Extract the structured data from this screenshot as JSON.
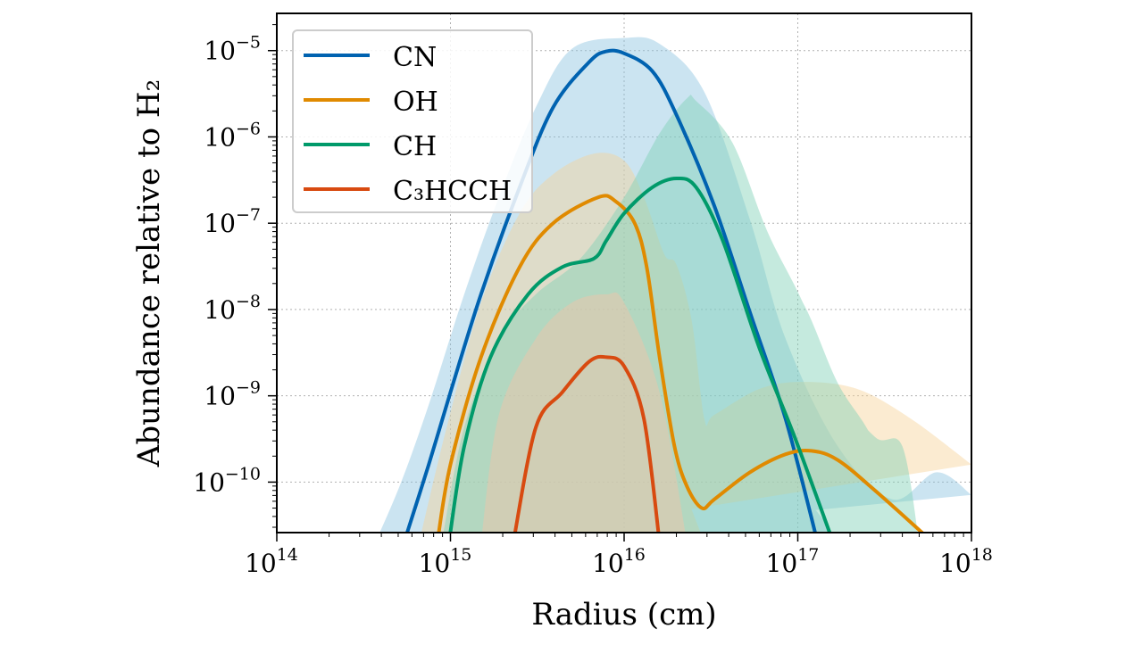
{
  "chart_data": {
    "type": "line",
    "xlabel": "Radius (cm)",
    "ylabel": "Abundance relative to H₂",
    "xscale": "log",
    "yscale": "log",
    "xlim": [
      100000000000000.0,
      1e+18
    ],
    "ylim": [
      2.6e-11,
      2.7e-05
    ],
    "grid": true,
    "legend_position": "top-left",
    "x_ticks": [
      {
        "base": "10",
        "exp": "14",
        "value": 100000000000000.0
      },
      {
        "base": "10",
        "exp": "15",
        "value": 1000000000000000.0
      },
      {
        "base": "10",
        "exp": "16",
        "value": 1e+16
      },
      {
        "base": "10",
        "exp": "17",
        "value": 1e+17
      },
      {
        "base": "10",
        "exp": "18",
        "value": 1e+18
      }
    ],
    "y_ticks": [
      {
        "base": "10",
        "exp": "−5",
        "value": 1e-05
      },
      {
        "base": "10",
        "exp": "−6",
        "value": 1e-06
      },
      {
        "base": "10",
        "exp": "−7",
        "value": 1e-07
      },
      {
        "base": "10",
        "exp": "−8",
        "value": 1e-08
      },
      {
        "base": "10",
        "exp": "−9",
        "value": 1e-09
      },
      {
        "base": "10",
        "exp": "−10",
        "value": 1e-10
      }
    ],
    "series": [
      {
        "name": "CN",
        "color": "#0062b0",
        "band_color": "#8cc3df",
        "x": [
          540000000000000.0,
          750000000000000.0,
          1000000000000000.0,
          1500000000000000.0,
          2500000000000000.0,
          3900000000000000.0,
          6300000000000000.0,
          7900000000000000.0,
          1e+16,
          1.45e+16,
          2e+16,
          3.3e+16,
          5.3e+16,
          8.5e+16,
          1.3e+17
        ],
        "y": [
          2e-11,
          1.6e-10,
          1.1e-09,
          1.5e-08,
          2.6e-07,
          2.2e-06,
          7.4e-06,
          9.8e-06,
          9.3e-06,
          5.8e-06,
          1.8e-06,
          1.6e-07,
          9.3e-09,
          5.4e-10,
          2e-11
        ],
        "band_upper": {
          "x": [
            370000000000000.0,
            520000000000000.0,
            750000000000000.0,
            1200000000000000.0,
            1900000000000000.0,
            3100000000000000.0,
            5000000000000000.0,
            1e+16,
            1.6e+16,
            2.9e+16,
            5.3e+16,
            8.5e+16,
            1.7e+17,
            3.5e+17,
            6.3e+17,
            1e+18
          ],
          "y": [
            2e-11,
            1e-10,
            7.9e-10,
            1.5e-08,
            2e-07,
            2.2e-06,
            1.05e-05,
            1.4e-05,
            1.2e-05,
            3.3e-06,
            1.1e-07,
            4.6e-09,
            2.6e-10,
            6.3e-11,
            1.3e-10,
            7.1e-11
          ]
        },
        "band_lower": {
          "x": [
            1500000000000000.0,
            2500000000000000.0,
            3900000000000000.0,
            6300000000000000.0,
            7900000000000000.0,
            1.15e+16,
            1.8e+16,
            2.9e+16,
            3.5e+16,
            4.7e+16,
            7.6e+16,
            1.37e+17,
            1.7e+17
          ],
          "y": [
            2e-11,
            2.8e-09,
            7.9e-08,
            1.4e-06,
            1.85e-06,
            8.6e-07,
            4.9e-08,
            5.4e-10,
            3.3e-10,
            3.3e-10,
            1.6e-10,
            3.9e-11,
            2e-11
          ]
        }
      },
      {
        "name": "OH",
        "color": "#e08a00",
        "band_color": "#f6d29a",
        "x": [
          840000000000000.0,
          1000000000000000.0,
          1500000000000000.0,
          2500000000000000.0,
          3900000000000000.0,
          7100000000000000.0,
          8900000000000000.0,
          1.15e+16,
          1.35e+16,
          1.6e+16,
          1.95e+16,
          2.3e+16,
          2.8e+16,
          3.3e+16,
          5.3e+16,
          8.5e+16,
          1.2e+17,
          1.7e+17,
          2.8e+17,
          6e+17
        ],
        "y": [
          2e-11,
          1.6e-10,
          2.8e-09,
          3.1e-08,
          1e-07,
          2e-07,
          1.8e-07,
          1e-07,
          3.1e-08,
          2.8e-09,
          2.6e-10,
          8.9e-11,
          5e-11,
          6.3e-11,
          1.3e-10,
          2.1e-10,
          2.3e-10,
          1.8e-10,
          7.9e-11,
          2e-11
        ],
        "band_upper": {
          "x": [
            660000000000000.0,
            950000000000000.0,
            1500000000000000.0,
            2500000000000000.0,
            3900000000000000.0,
            6700000000000000.0,
            1e+16,
            1.3e+16,
            1.7e+16,
            2e+16,
            2.45e+16,
            2.9e+16,
            3.3e+16,
            6e+16,
            1.07e+17,
            2.2e+17,
            4.5e+17,
            1e+18
          ],
          "y": [
            2e-11,
            4.3e-10,
            1.2e-08,
            1.3e-07,
            3.7e-07,
            6.4e-07,
            5.3e-07,
            2e-07,
            4.4e-08,
            3.3e-08,
            7.4e-09,
            5.4e-10,
            6e-10,
            1.2e-09,
            1.45e-09,
            1.2e-09,
            5.4e-10,
            1.6e-10
          ]
        },
        "band_lower": {
          "x": [
            1500000000000000.0,
            1800000000000000.0,
            2800000000000000.0,
            4400000000000000.0,
            7100000000000000.0,
            9500000000000000.0,
            1.2e+16,
            1.6e+16,
            2e+16,
            2.9e+16
          ],
          "y": [
            2e-11,
            2.6e-10,
            1.8e-09,
            4.6e-09,
            8.3e-09,
            2e-08,
            2e-08,
            1.8e-09,
            1.6e-10,
            2e-11
          ]
        }
      },
      {
        "name": "CH",
        "color": "#009a6a",
        "band_color": "#7fd0b5",
        "x": [
          980000000000000.0,
          1200000000000000.0,
          1700000000000000.0,
          2800000000000000.0,
          4400000000000000.0,
          6700000000000000.0,
          7900000000000000.0,
          1e+16,
          1.45e+16,
          2e+16,
          2.6e+16,
          3.7e+16,
          6e+16,
          9.6e+16,
          1.6e+17
        ],
        "y": [
          2e-11,
          2.6e-10,
          2.8e-09,
          1.5e-08,
          3.1e-08,
          3.9e-08,
          6.3e-08,
          1.3e-07,
          2.6e-07,
          3.3e-07,
          2.6e-07,
          6.3e-08,
          3.6e-09,
          3.3e-10,
          2e-11
        ],
        "band_upper": {
          "x": [
            890000000000000.0,
            1200000000000000.0,
            1900000000000000.0,
            3100000000000000.0,
            5600000000000000.0,
            1e+16,
            1.6e+16,
            2.3e+16,
            2.6e+16,
            4.2e+16,
            6.7e+16,
            1.07e+17,
            1.7e+17,
            2.8e+17,
            4e+17,
            5e+17
          ],
          "y": [
            2e-11,
            4.3e-10,
            4.6e-09,
            1.5e-08,
            3.9e-08,
            2e-07,
            1.1e-06,
            2.8e-06,
            2.6e-06,
            8.6e-07,
            7.9e-08,
            1.2e-08,
            1.2e-09,
            3.3e-10,
            2.6e-10,
            2e-11
          ]
        },
        "band_lower": {
          "x": [
            1500000000000000.0,
            1900000000000000.0,
            3100000000000000.0,
            5600000000000000.0,
            1e+16,
            1.6e+16,
            2.6e+16,
            3.3e+16,
            4.7e+16,
            6.7e+16,
            1.07e+17,
            1.7e+17,
            2.8e+17,
            3.7e+17
          ],
          "y": [
            2e-11,
            4.3e-10,
            2.8e-09,
            6.3e-09,
            3.9e-08,
            3.9e-08,
            4.4e-08,
            7.4e-09,
            3.9e-08,
            3.9e-08,
            1.2e-08,
            1.4e-09,
            2.6e-10,
            2e-11
          ]
        }
      },
      {
        "name": "C₃HCCH",
        "color": "#d84a10",
        "band_color": "#f3c4a8",
        "x": [
          2300000000000000.0,
          3100000000000000.0,
          4400000000000000.0,
          6300000000000000.0,
          7900000000000000.0,
          1e+16,
          1.3e+16,
          1.6e+16
        ],
        "y": [
          2e-11,
          4.3e-10,
          1.1e-09,
          2.5e-09,
          2.8e-09,
          2.2e-09,
          5.4e-10,
          2e-11
        ],
        "band_upper": {
          "x": [
            1500000000000000.0,
            1900000000000000.0,
            3100000000000000.0,
            5000000000000000.0,
            7900000000000000.0,
            1e+16,
            1.6e+16,
            2.3e+16
          ],
          "y": [
            2e-11,
            6e-10,
            4.6e-09,
            1.2e-08,
            1.5e-08,
            1.2e-08,
            1.1e-09,
            2e-11
          ]
        },
        "band_lower": {
          "x": [
            2.3e+16,
            1500000000000000.0
          ],
          "y": [
            2e-11,
            2e-11
          ]
        }
      }
    ]
  }
}
